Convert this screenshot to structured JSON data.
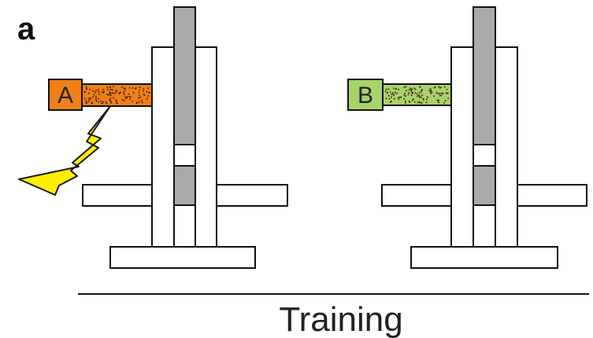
{
  "figure": {
    "panel_label": "a",
    "caption": "Training"
  },
  "units": [
    {
      "id": "left",
      "cue_label": "A",
      "cue_color": "#f07f18",
      "conduit_color": "#f07f18",
      "shocked": true,
      "shock_color": "#ffee00"
    },
    {
      "id": "right",
      "cue_label": "B",
      "cue_color": "#a7d36b",
      "conduit_color": "#a7d36b",
      "shocked": false
    }
  ],
  "colors": {
    "outline": "#111111",
    "piston_fill": "#a9aaac",
    "background": "#ffffff",
    "dots": "#4a2a10"
  }
}
